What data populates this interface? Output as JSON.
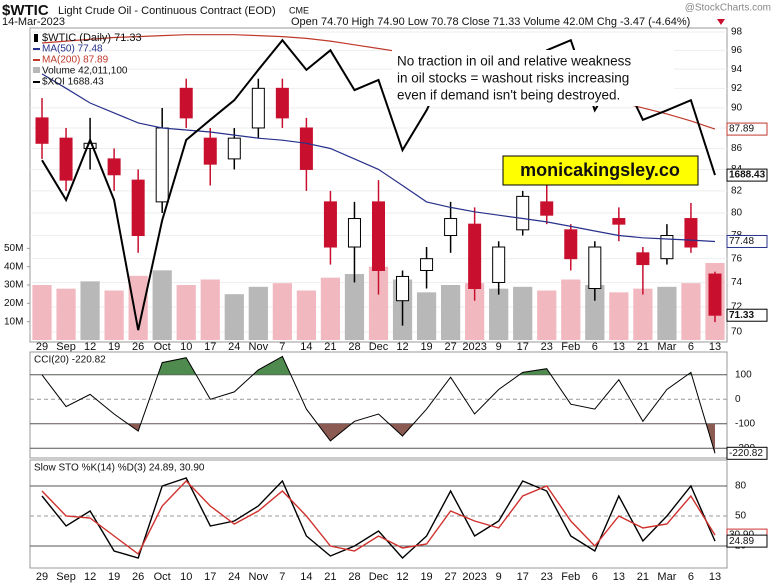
{
  "header": {
    "symbol": "$WTIC",
    "name": "Light Crude Oil - Continuous Contract (EOD)",
    "exchange": "CME",
    "date": "14-Mar-2023",
    "quote": "Open 74.70 High 74.90 Low 70.78 Close 71.33 Volume 42.0M Chg -3.47 (-4.64%)",
    "source": "@StockCharts.com"
  },
  "chart_data": [
    {
      "type": "candlestick",
      "price_name": "$WTIC (Daily) 71.33",
      "categories": [
        "29",
        "Sep",
        "12",
        "19",
        "26",
        "Oct",
        "10",
        "17",
        "24",
        "Nov",
        "7",
        "14",
        "21",
        "28",
        "Dec",
        "12",
        "19",
        "27",
        "2023",
        "9",
        "17",
        "23",
        "Feb",
        "6",
        "13",
        "21",
        "Mar",
        "6",
        "13"
      ],
      "open": [
        89,
        87,
        86,
        85,
        83,
        81,
        92,
        87,
        85,
        88,
        92,
        88,
        81,
        77,
        81,
        72.5,
        75,
        78,
        79,
        74,
        78.5,
        81,
        78.5,
        73.5,
        79.5,
        76.5,
        76,
        79.5,
        74.7
      ],
      "high": [
        91,
        88,
        89,
        86,
        84,
        90,
        93,
        88,
        88,
        93,
        93,
        89,
        82,
        81,
        83,
        75,
        77,
        81,
        80.5,
        77.5,
        82,
        82.5,
        79,
        77.5,
        80.5,
        77,
        79,
        80.9,
        74.9
      ],
      "low": [
        85,
        82,
        84,
        82,
        76.5,
        80,
        88,
        82.5,
        84,
        87,
        88,
        82,
        75.5,
        74,
        73,
        70.5,
        73.5,
        76.5,
        72.5,
        73,
        78,
        79,
        75,
        72.5,
        77.5,
        73,
        75.5,
        76.5,
        70.78
      ],
      "close": [
        86.5,
        83,
        86.5,
        83.5,
        78,
        88,
        89,
        84.5,
        87,
        92,
        89,
        84,
        77,
        79.5,
        75,
        74.5,
        76,
        79.5,
        73.5,
        77,
        81.5,
        79.8,
        76,
        77,
        79,
        75.5,
        78,
        77,
        71.33
      ],
      "up_color": "#000000",
      "down_color": "#c8102e",
      "ylim": [
        70,
        98
      ],
      "yticks": [
        70,
        72,
        74,
        76,
        78,
        80,
        82,
        84,
        86,
        88,
        90,
        92,
        94,
        96,
        98
      ],
      "log": true,
      "grid": true,
      "y2lim": [
        1440,
        1915
      ],
      "series": [
        {
          "name": "MA(50) 77.48",
          "color": "#27318b",
          "values": [
            93.5,
            92,
            90.5,
            89.5,
            88.5,
            88,
            87.8,
            87.6,
            87.3,
            87,
            86.8,
            86.5,
            86,
            85,
            84,
            82.5,
            81,
            80.5,
            80.1,
            79.8,
            79.5,
            79.2,
            78.8,
            78.4,
            78,
            77.8,
            77.7,
            77.6,
            77.48
          ]
        },
        {
          "name": "MA(200) 87.89",
          "color": "#c0392b",
          "values": [
            96.8,
            97,
            97.2,
            97.4,
            97.5,
            97.6,
            97.7,
            97.7,
            97.7,
            97.6,
            97.5,
            97.3,
            97,
            96.6,
            96.2,
            95.8,
            95.3,
            94.8,
            94.2,
            93.6,
            93,
            92.4,
            91.8,
            91.2,
            90.6,
            90,
            89.4,
            88.7,
            87.89
          ]
        },
        {
          "name": "$XOI 1688.43",
          "color": "#000000",
          "axis": "y2",
          "values": [
            1712,
            1649,
            1744,
            1649,
            1443,
            1617,
            1744,
            1776,
            1807,
            1855,
            1902,
            1855,
            1886,
            1823,
            1839,
            1728,
            1791,
            1871,
            1823,
            1855,
            1839,
            1886,
            1902,
            1791,
            1855,
            1776,
            1791,
            1807,
            1688.43
          ]
        }
      ],
      "volume": {
        "name": "Volume 42,011,100",
        "up_color": "#b8b8b8",
        "down_color": "#f2b8c0",
        "values": [
          30000000,
          28000000,
          32000000,
          27000000,
          35000000,
          38000000,
          30000000,
          33000000,
          25000000,
          29000000,
          31000000,
          27000000,
          34000000,
          36000000,
          40000000,
          33000000,
          26000000,
          30000000,
          31000000,
          28000000,
          29000000,
          27000000,
          33000000,
          30000000,
          26000000,
          28000000,
          29000000,
          31000000,
          42011100
        ],
        "ylim": [
          0,
          168000000
        ],
        "yticks": [
          {
            "value": 10000000,
            "label": "10M"
          },
          {
            "value": 20000000,
            "label": "20M"
          },
          {
            "value": 30000000,
            "label": "30M"
          },
          {
            "value": 40000000,
            "label": "40M"
          },
          {
            "value": 50000000,
            "label": "50M"
          }
        ]
      },
      "annotations": [
        "No traction in oil and relative weakness",
        "in oil stocks = washout risks increasing",
        "even if demand isn't being destroyed."
      ],
      "watermark": "monicakingsley.co"
    },
    {
      "type": "cci",
      "name": "CCI(20) -220.82",
      "color": "#000000",
      "values": [
        100,
        -30,
        20,
        -60,
        -130,
        150,
        170,
        0,
        30,
        120,
        175,
        -40,
        -170,
        -90,
        -60,
        -150,
        -40,
        90,
        -60,
        40,
        110,
        125,
        -20,
        -40,
        80,
        -90,
        40,
        110,
        -220.82
      ],
      "ylim": [
        -240,
        185
      ],
      "yticks": [
        -200,
        -100,
        0,
        100
      ],
      "over_color": "#4f8a4f",
      "under_color": "#8b5a52"
    },
    {
      "type": "stochastic",
      "name": "Slow STO %K(14) %D(3) 24.89, 30.90",
      "series": [
        {
          "name": "%K(14)",
          "color": "#000000",
          "values": [
            70,
            40,
            55,
            15,
            8,
            80,
            88,
            40,
            45,
            60,
            85,
            30,
            10,
            20,
            35,
            8,
            30,
            75,
            30,
            45,
            85,
            75,
            30,
            15,
            70,
            25,
            50,
            80,
            24.89
          ]
        },
        {
          "name": "%D(3)",
          "color": "#d0312d",
          "values": [
            75,
            50,
            48,
            30,
            12,
            60,
            85,
            60,
            42,
            55,
            75,
            50,
            20,
            15,
            30,
            18,
            22,
            55,
            45,
            38,
            70,
            80,
            45,
            20,
            50,
            38,
            42,
            70,
            30.9
          ],
          "value_labels": [
            null,
            null,
            null,
            null,
            null,
            null,
            null,
            null,
            null,
            null,
            null,
            null,
            null,
            null,
            null,
            null,
            null,
            null,
            null,
            null,
            null,
            null,
            null,
            null,
            null,
            null,
            null,
            null,
            "30.90"
          ]
        }
      ],
      "ylim": [
        0,
        100
      ],
      "yticks": [
        20,
        50,
        80
      ]
    }
  ]
}
